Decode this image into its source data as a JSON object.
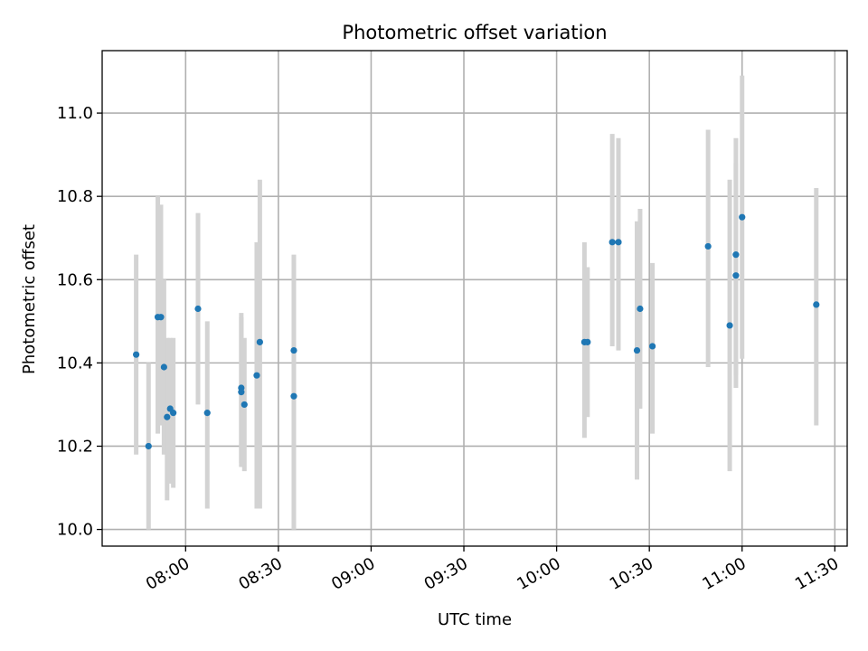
{
  "chart_data": {
    "type": "scatter",
    "title": "Photometric offset variation",
    "xlabel": "UTC time",
    "ylabel": "Photometric offset",
    "xlim": [
      "07:33",
      "11:34"
    ],
    "ylim": [
      9.96,
      11.15
    ],
    "x_ticks": [
      "08:00",
      "08:30",
      "09:00",
      "09:30",
      "10:00",
      "10:30",
      "11:00",
      "11:30"
    ],
    "y_ticks": [
      "10.0",
      "10.2",
      "10.4",
      "10.6",
      "10.8",
      "11.0"
    ],
    "grid": true,
    "errorbar_color": "#d3d3d3",
    "marker_color": "#1f77b4",
    "series": [
      {
        "points": [
          {
            "x": "07:44",
            "y": 10.42,
            "y_low": 10.18,
            "y_high": 10.66
          },
          {
            "x": "07:48",
            "y": 10.2,
            "y_low": 10.0,
            "y_high": 10.4
          },
          {
            "x": "07:51",
            "y": 10.51,
            "y_low": 10.23,
            "y_high": 10.8
          },
          {
            "x": "07:52",
            "y": 10.51,
            "y_low": 10.25,
            "y_high": 10.78
          },
          {
            "x": "07:53",
            "y": 10.39,
            "y_low": 10.18,
            "y_high": 10.6
          },
          {
            "x": "07:54",
            "y": 10.27,
            "y_low": 10.07,
            "y_high": 10.46
          },
          {
            "x": "07:55",
            "y": 10.29,
            "y_low": 10.11,
            "y_high": 10.46
          },
          {
            "x": "07:56",
            "y": 10.28,
            "y_low": 10.1,
            "y_high": 10.46
          },
          {
            "x": "08:04",
            "y": 10.53,
            "y_low": 10.3,
            "y_high": 10.76
          },
          {
            "x": "08:07",
            "y": 10.28,
            "y_low": 10.05,
            "y_high": 10.5
          },
          {
            "x": "08:18",
            "y": 10.33,
            "y_low": 10.15,
            "y_high": 10.51
          },
          {
            "x": "08:18",
            "y": 10.34,
            "y_low": 10.16,
            "y_high": 10.52
          },
          {
            "x": "08:19",
            "y": 10.3,
            "y_low": 10.14,
            "y_high": 10.46
          },
          {
            "x": "08:23",
            "y": 10.37,
            "y_low": 10.05,
            "y_high": 10.69
          },
          {
            "x": "08:24",
            "y": 10.45,
            "y_low": 10.05,
            "y_high": 10.84
          },
          {
            "x": "08:35",
            "y": 10.32,
            "y_low": 10.0,
            "y_high": 10.64
          },
          {
            "x": "08:35",
            "y": 10.43,
            "y_low": 10.2,
            "y_high": 10.66
          },
          {
            "x": "10:09",
            "y": 10.45,
            "y_low": 10.22,
            "y_high": 10.69
          },
          {
            "x": "10:10",
            "y": 10.45,
            "y_low": 10.27,
            "y_high": 10.63
          },
          {
            "x": "10:18",
            "y": 10.69,
            "y_low": 10.44,
            "y_high": 10.95
          },
          {
            "x": "10:20",
            "y": 10.69,
            "y_low": 10.43,
            "y_high": 10.94
          },
          {
            "x": "10:26",
            "y": 10.43,
            "y_low": 10.12,
            "y_high": 10.74
          },
          {
            "x": "10:27",
            "y": 10.53,
            "y_low": 10.29,
            "y_high": 10.77
          },
          {
            "x": "10:31",
            "y": 10.44,
            "y_low": 10.23,
            "y_high": 10.64
          },
          {
            "x": "10:49",
            "y": 10.68,
            "y_low": 10.39,
            "y_high": 10.96
          },
          {
            "x": "10:56",
            "y": 10.49,
            "y_low": 10.14,
            "y_high": 10.84
          },
          {
            "x": "10:58",
            "y": 10.61,
            "y_low": 10.34,
            "y_high": 10.88
          },
          {
            "x": "10:58",
            "y": 10.66,
            "y_low": 10.37,
            "y_high": 10.94
          },
          {
            "x": "11:00",
            "y": 10.75,
            "y_low": 10.41,
            "y_high": 11.09
          },
          {
            "x": "11:24",
            "y": 10.54,
            "y_low": 10.25,
            "y_high": 10.82
          }
        ]
      }
    ]
  }
}
